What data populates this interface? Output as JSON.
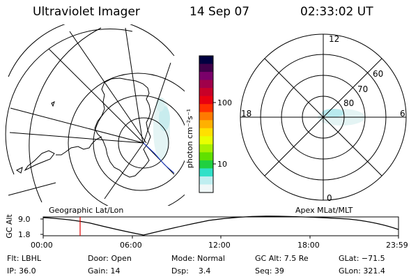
{
  "header": {
    "instrument": "Ultraviolet Imager",
    "date": "14 Sep 07",
    "time": "02:33:02 UT"
  },
  "colorbar": {
    "unit_label": "photon cm⁻²s⁻¹",
    "ticks": [
      "100",
      "10"
    ],
    "colors": [
      "#000040",
      "#40004a",
      "#7a006a",
      "#a0004a",
      "#c80028",
      "#e80010",
      "#ff3000",
      "#ff7a00",
      "#ffb000",
      "#ffe000",
      "#e8ff00",
      "#a8f000",
      "#60e000",
      "#20d040",
      "#30e0c8",
      "#bfeef0",
      "#f0f8f8"
    ]
  },
  "polar_plot": {
    "mlt_labels": {
      "top": "12",
      "left": "18",
      "right": "6",
      "bottom": "0"
    },
    "lat_labels": [
      "60",
      "70",
      "80"
    ]
  },
  "timeline": {
    "y_axis_title": "GC Alt",
    "y_ticks": [
      "9.0",
      "1.8"
    ],
    "left_title": "Geographic Lat/Lon",
    "right_title": "Apex MLat/MLT",
    "x_ticks": [
      "00:00",
      "06:00",
      "12:00",
      "18:00",
      "23:59"
    ],
    "marker_time": "02:33",
    "marker_color": "#e00000"
  },
  "status": {
    "row1": {
      "flt": "Flt: LBHL",
      "door": "Door: Open",
      "mode": "Mode: Normal",
      "gcalt": "GC Alt: 7.5 Re",
      "glat": "GLat: −71.5"
    },
    "row2": {
      "ip": "IP: 36.0",
      "gain": "Gain: 14",
      "dsp": "Dsp:    3.4",
      "seq": "Seq: 39",
      "glon": "GLon: 321.4"
    }
  }
}
